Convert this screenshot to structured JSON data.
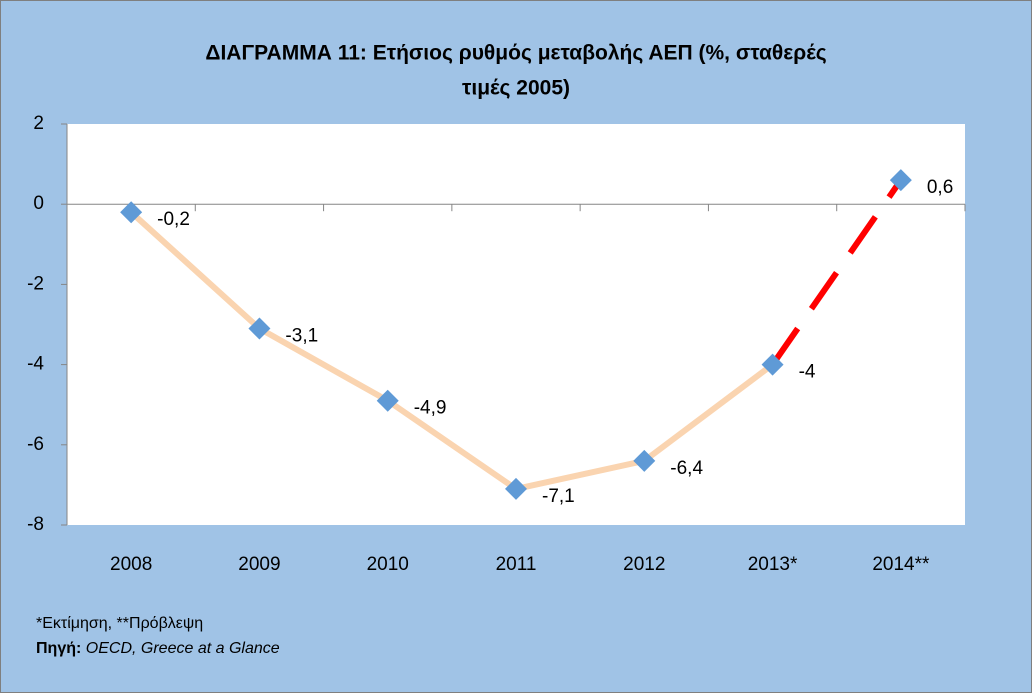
{
  "chart_data": {
    "type": "line",
    "title": [
      "ΔΙΑΓΡΑΜΜΑ 11: Ετήσιος ρυθμός μεταβολής ΑΕΠ (%, σταθερές",
      "τιμές 2005)"
    ],
    "categories": [
      "2008",
      "2009",
      "2010",
      "2011",
      "2012",
      "2013*",
      "2014**"
    ],
    "values": [
      -0.2,
      -3.1,
      -4.9,
      -7.1,
      -6.4,
      -4,
      0.6
    ],
    "value_labels": [
      "-0,2",
      "-3,1",
      "-4,9",
      "-7,1",
      "-6,4",
      "-4",
      "0,6"
    ],
    "color": "#fad4b0",
    "marker_color": "#5f9ad6",
    "projection_color": "#ff0000",
    "projection_from": 5,
    "ylim": [
      -8,
      2
    ],
    "yticks": [
      -8,
      -6,
      -4,
      -2,
      0,
      2
    ],
    "footnote": "*Εκτίμηση, **Πρόβλεψη",
    "source_label": "Πηγή:",
    "source": "OECD, Greece at a Glance"
  }
}
